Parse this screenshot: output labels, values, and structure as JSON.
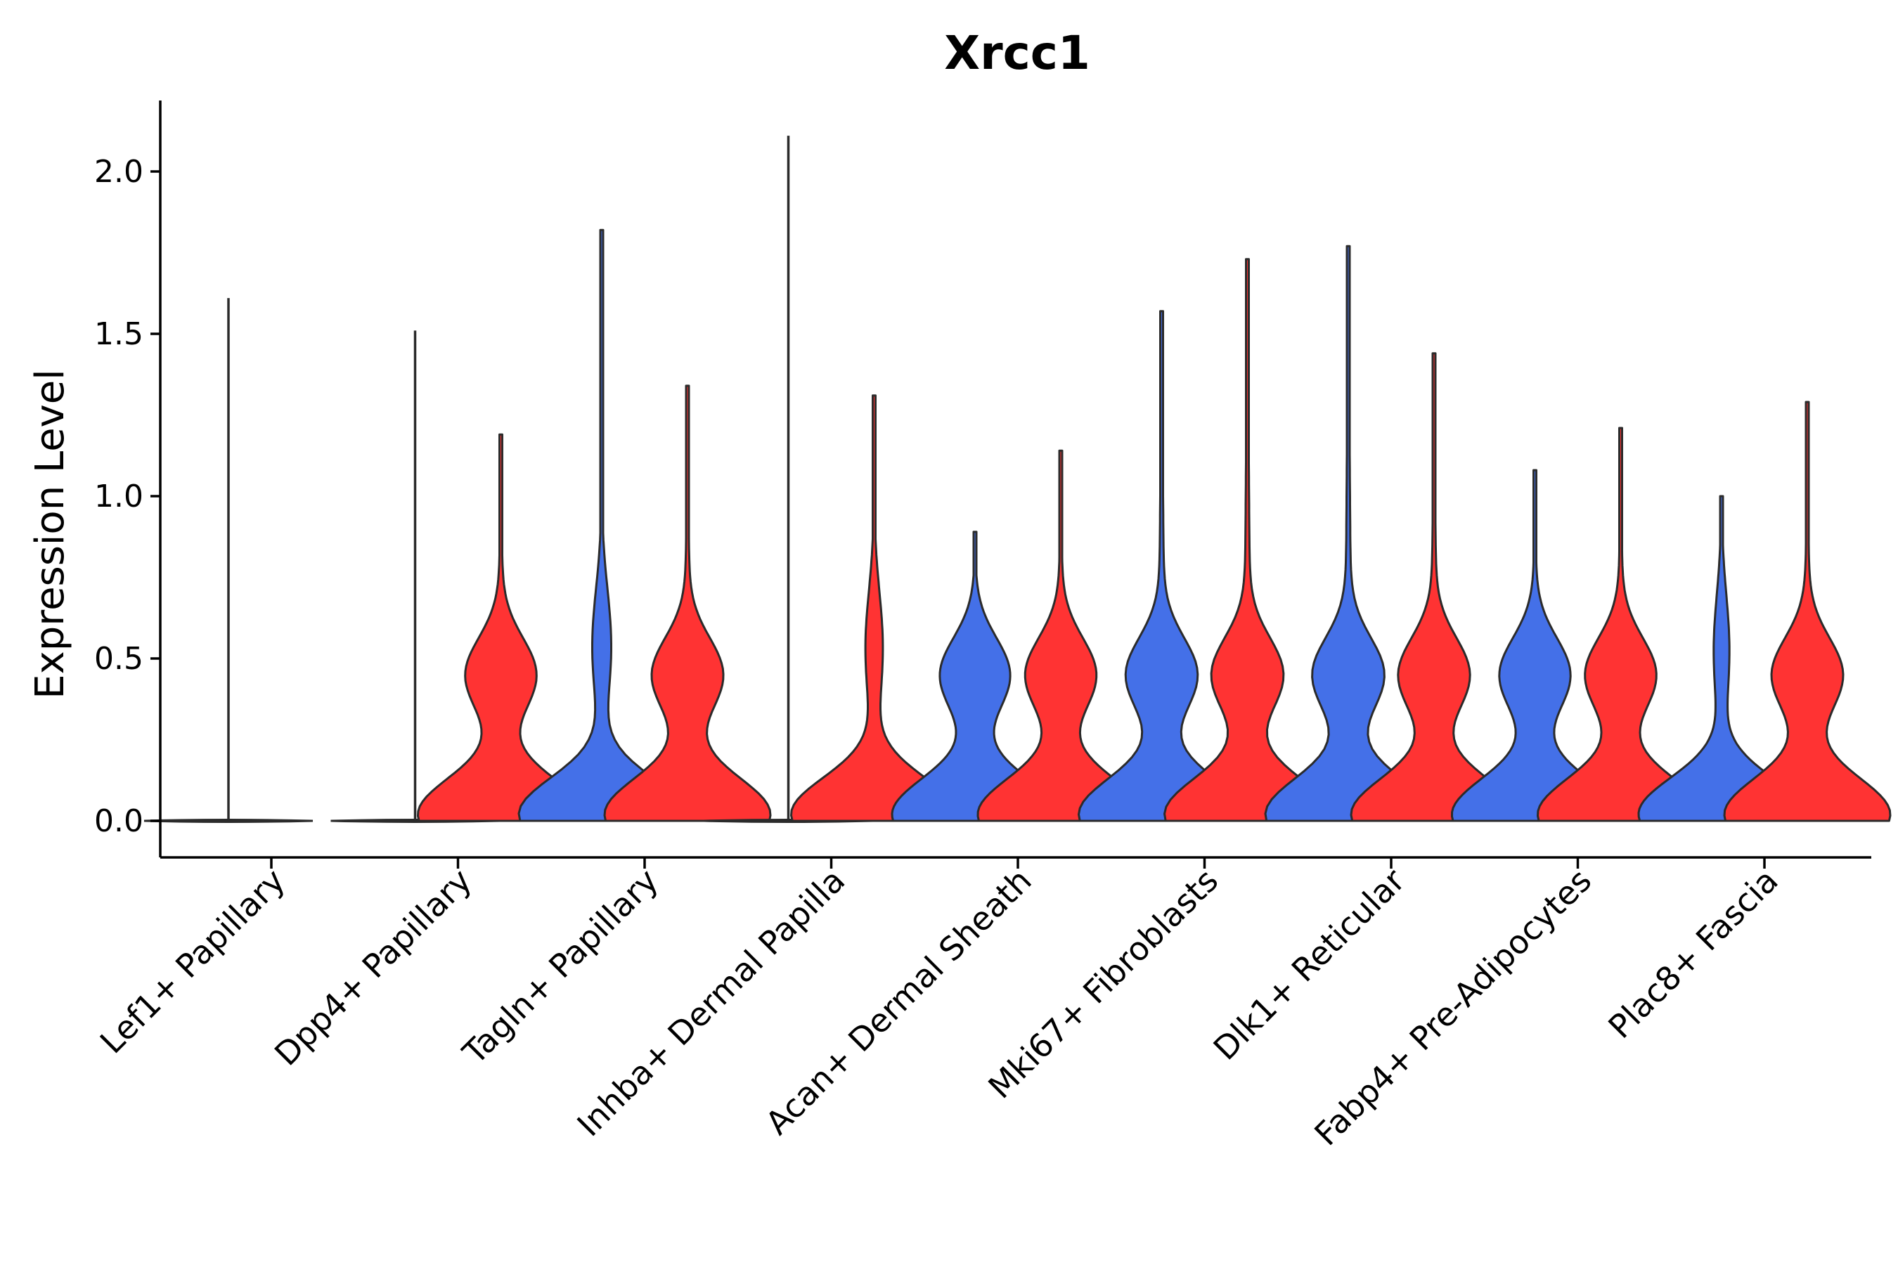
{
  "chart_data": {
    "type": "violin",
    "title": "Xrcc1",
    "xlabel": "",
    "ylabel": "Expression Level",
    "ylim": [
      -0.1,
      2.2
    ],
    "yticks": [
      "0.0",
      "0.5",
      "1.0",
      "1.5",
      "2.0"
    ],
    "ytick_values": [
      0.0,
      0.5,
      1.0,
      1.5,
      2.0
    ],
    "legend": "none",
    "series": [
      {
        "name": "group_blue",
        "color": "#4470E8"
      },
      {
        "name": "group_red",
        "color": "#FF3333"
      }
    ],
    "categories": [
      "Lef1+ Papillary",
      "Dpp4+ Papillary",
      "Tagln+ Papillary",
      "Inhba+ Dermal Papilla",
      "Acan+ Dermal Sheath",
      "Mki67+ Fibroblasts",
      "Dlk1+ Reticular",
      "Fabp4+ Pre-Adipocytes",
      "Plac8+ Fascia"
    ],
    "violins": [
      {
        "category": "Lef1+ Papillary",
        "series": "group_blue",
        "max": 1.61,
        "mode": 0.0,
        "shape": "flat"
      },
      {
        "category": "Dpp4+ Papillary",
        "series": "group_blue",
        "max": 1.51,
        "mode": 0.0,
        "shape": "flat"
      },
      {
        "category": "Dpp4+ Papillary",
        "series": "group_red",
        "max": 1.19,
        "mode": 0.05,
        "shape": "bimodal"
      },
      {
        "category": "Tagln+ Papillary",
        "series": "group_blue",
        "max": 1.82,
        "mode": 0.05,
        "shape": "unimodal"
      },
      {
        "category": "Tagln+ Papillary",
        "series": "group_red",
        "max": 1.34,
        "mode": 0.05,
        "shape": "bimodal"
      },
      {
        "category": "Inhba+ Dermal Papilla",
        "series": "group_blue",
        "max": 2.11,
        "mode": 0.0,
        "shape": "flat"
      },
      {
        "category": "Inhba+ Dermal Papilla",
        "series": "group_red",
        "max": 1.31,
        "mode": 0.05,
        "shape": "unimodal"
      },
      {
        "category": "Acan+ Dermal Sheath",
        "series": "group_blue",
        "max": 0.89,
        "mode": 0.05,
        "shape": "bimodal"
      },
      {
        "category": "Acan+ Dermal Sheath",
        "series": "group_red",
        "max": 1.14,
        "mode": 0.05,
        "shape": "bimodal"
      },
      {
        "category": "Mki67+ Fibroblasts",
        "series": "group_blue",
        "max": 1.57,
        "mode": 0.05,
        "shape": "bimodal"
      },
      {
        "category": "Mki67+ Fibroblasts",
        "series": "group_red",
        "max": 1.73,
        "mode": 0.05,
        "shape": "bimodal"
      },
      {
        "category": "Dlk1+ Reticular",
        "series": "group_blue",
        "max": 1.77,
        "mode": 0.05,
        "shape": "bimodal"
      },
      {
        "category": "Dlk1+ Reticular",
        "series": "group_red",
        "max": 1.44,
        "mode": 0.05,
        "shape": "bimodal"
      },
      {
        "category": "Fabp4+ Pre-Adipocytes",
        "series": "group_blue",
        "max": 1.08,
        "mode": 0.05,
        "shape": "bimodal"
      },
      {
        "category": "Fabp4+ Pre-Adipocytes",
        "series": "group_red",
        "max": 1.21,
        "mode": 0.05,
        "shape": "bimodal"
      },
      {
        "category": "Plac8+ Fascia",
        "series": "group_blue",
        "max": 1.0,
        "mode": 0.05,
        "shape": "unimodal"
      },
      {
        "category": "Plac8+ Fascia",
        "series": "group_red",
        "max": 1.29,
        "mode": 0.05,
        "shape": "bimodal"
      }
    ]
  }
}
